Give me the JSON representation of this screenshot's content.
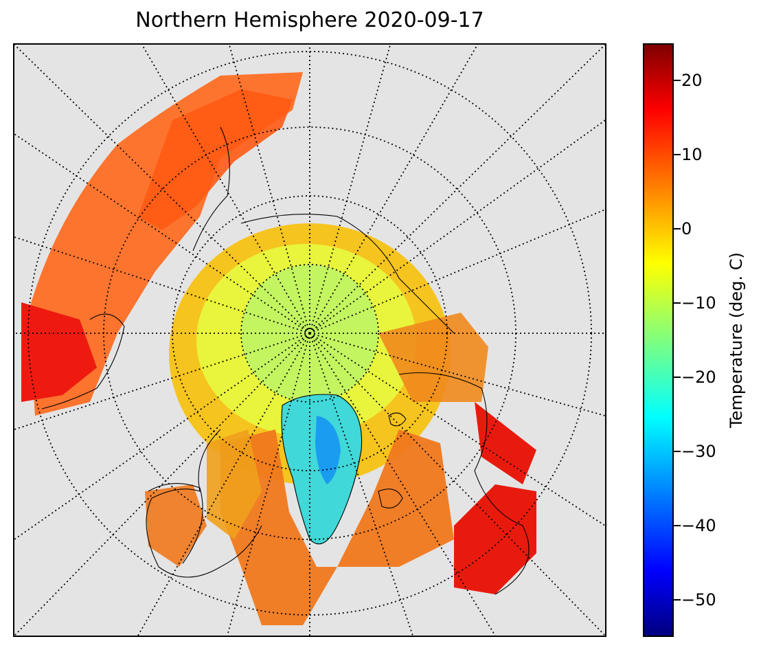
{
  "title": "Northern Hemisphere 2020-09-17",
  "colorbar": {
    "label": "Temperature (deg. C)",
    "min": -55,
    "max": 25,
    "ticks": [
      {
        "value": 20,
        "label": "20"
      },
      {
        "value": 10,
        "label": "10"
      },
      {
        "value": 0,
        "label": "0"
      },
      {
        "value": -10,
        "label": "−10"
      },
      {
        "value": -20,
        "label": "−20"
      },
      {
        "value": -30,
        "label": "−30"
      },
      {
        "value": -40,
        "label": "−40"
      },
      {
        "value": -50,
        "label": "−50"
      }
    ],
    "colormap": "jet"
  },
  "map": {
    "projection": "north-polar-stereographic",
    "graticule": "dotted",
    "land_outline_color": "#000000",
    "background_color": "#e4e4e4",
    "data_colors": {
      "pole": "#c8f55a",
      "ice_ring": "#f0f53c",
      "greenland": "#3ce8d0",
      "mid_lat": "#f58c1e",
      "warm": "#ff3c14"
    }
  }
}
